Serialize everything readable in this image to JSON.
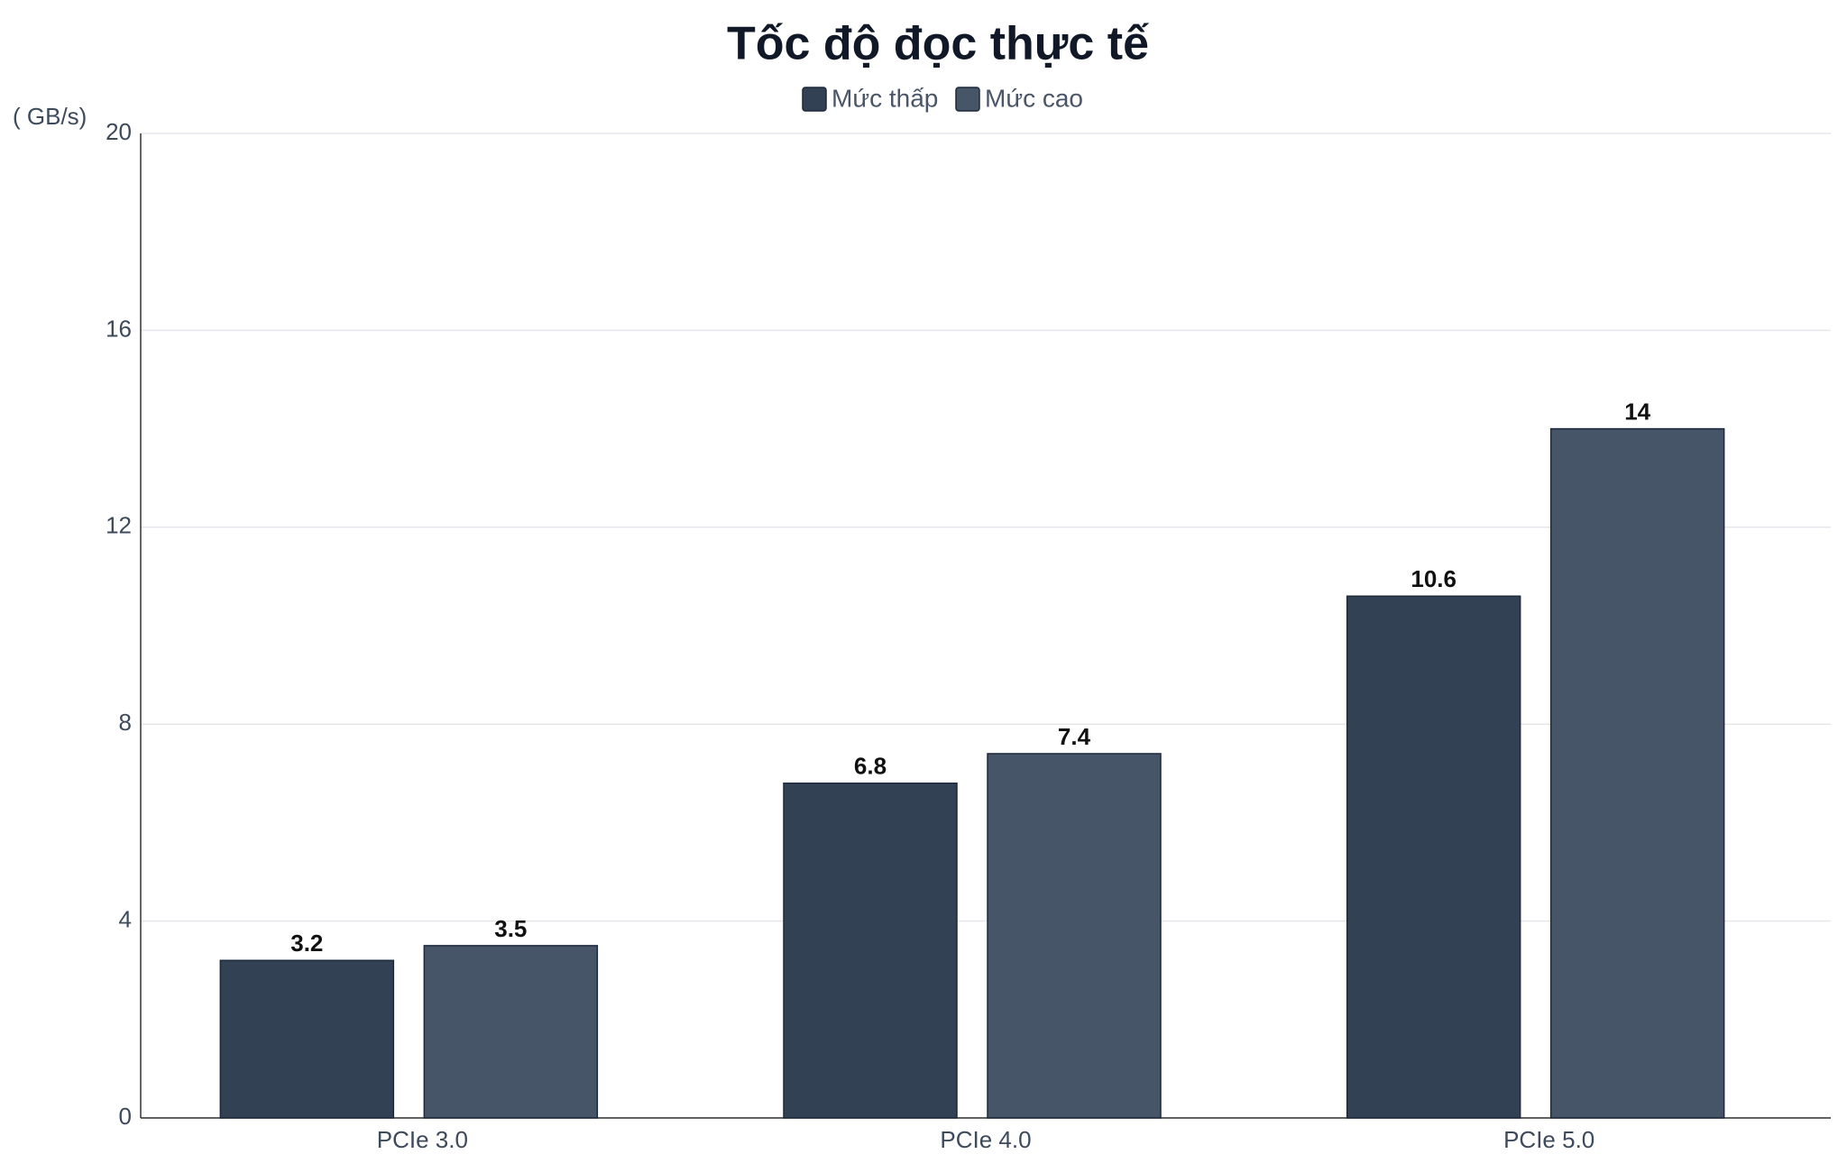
{
  "chart_data": {
    "type": "bar",
    "title": "Tốc độ đọc thực tế",
    "y_label": "( GB/s)",
    "categories": [
      "PCIe 3.0",
      "PCIe 4.0",
      "PCIe 5.0"
    ],
    "series": [
      {
        "name": "Mức thấp",
        "color": "#334155",
        "values": [
          3.2,
          6.8,
          10.6
        ]
      },
      {
        "name": "Mức cao",
        "color": "#475569",
        "values": [
          3.5,
          7.4,
          14
        ]
      }
    ],
    "ylim": [
      0,
      20
    ],
    "yticks": [
      0,
      4,
      8,
      12,
      16,
      20
    ],
    "grid": true,
    "legend": "top"
  }
}
